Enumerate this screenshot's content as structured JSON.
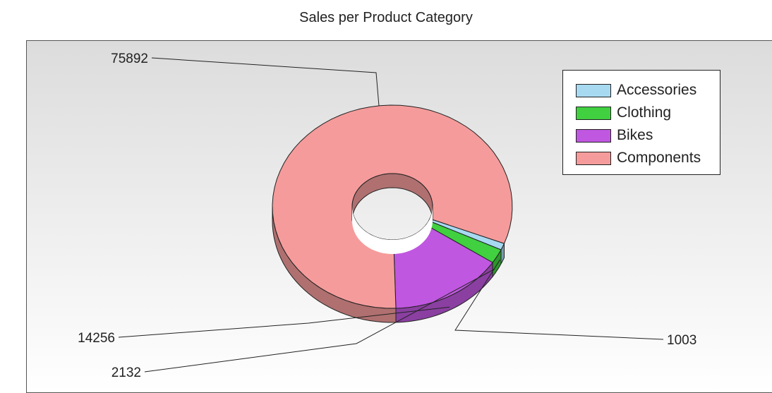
{
  "chart_data": {
    "type": "pie",
    "title": "Sales per Product Category",
    "categories": [
      "Accessories",
      "Clothing",
      "Bikes",
      "Components"
    ],
    "values": [
      1003,
      2132,
      14256,
      75892
    ],
    "colors": [
      "#a7d9f1",
      "#40d040",
      "#c057e0",
      "#f59b9b"
    ],
    "legend_position": "top-right",
    "style": "3d-doughnut"
  }
}
